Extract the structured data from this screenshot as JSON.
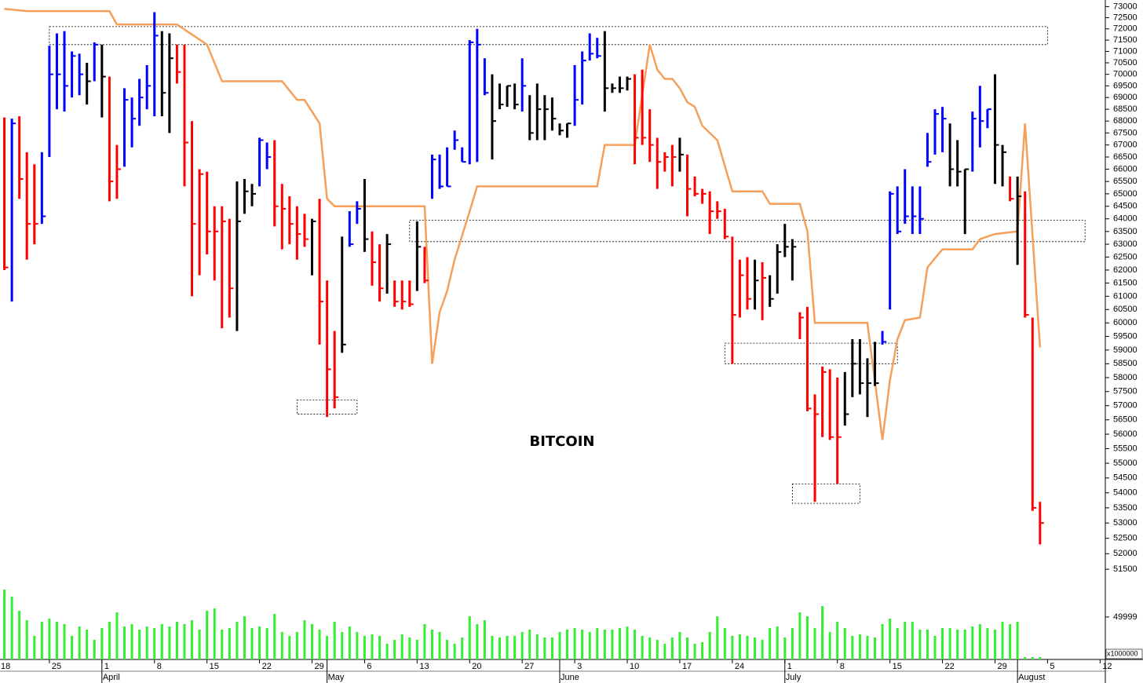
{
  "chart_data": {
    "type": "ohlc",
    "title": "BITCOIN",
    "log_scale": true,
    "grid": false,
    "ylim": [
      48700,
      73300
    ],
    "yticks": [
      73000,
      72500,
      72000,
      71500,
      71000,
      70500,
      70000,
      69500,
      69000,
      68500,
      68000,
      67500,
      67000,
      66500,
      66000,
      65500,
      65000,
      64500,
      64000,
      63500,
      63000,
      62500,
      62000,
      61500,
      61000,
      60500,
      60000,
      59500,
      59000,
      58500,
      58000,
      57500,
      57000,
      56500,
      56000,
      55500,
      55000,
      54500,
      54000,
      53500,
      53000,
      52500,
      52000,
      51500,
      49999
    ],
    "xlim": [
      0.42,
      147.7
    ],
    "xticks": [
      {
        "value": 0,
        "label": "18"
      },
      {
        "value": 7,
        "label": "25"
      },
      {
        "value": 14,
        "label": "1"
      },
      {
        "value": 21,
        "label": "8"
      },
      {
        "value": 28,
        "label": "15"
      },
      {
        "value": 35,
        "label": "22"
      },
      {
        "value": 42,
        "label": "29"
      },
      {
        "value": 49,
        "label": "6"
      },
      {
        "value": 56,
        "label": "13"
      },
      {
        "value": 63,
        "label": "20"
      },
      {
        "value": 70,
        "label": "27"
      },
      {
        "value": 77,
        "label": "3"
      },
      {
        "value": 84,
        "label": "10"
      },
      {
        "value": 91,
        "label": "17"
      },
      {
        "value": 98,
        "label": "24"
      },
      {
        "value": 105,
        "label": "1"
      },
      {
        "value": 112,
        "label": "8"
      },
      {
        "value": 119,
        "label": "15"
      },
      {
        "value": 126,
        "label": "22"
      },
      {
        "value": 133,
        "label": "29"
      },
      {
        "value": 140,
        "label": "5"
      },
      {
        "value": 147,
        "label": "12"
      }
    ],
    "month_ticks": [
      {
        "value": 14,
        "label": "April"
      },
      {
        "value": 44,
        "label": "May"
      },
      {
        "value": 75,
        "label": "June"
      },
      {
        "value": 105,
        "label": "July"
      },
      {
        "value": 136,
        "label": "August"
      }
    ],
    "x": [
      1,
      2,
      3,
      4,
      5,
      6,
      7,
      8,
      9,
      10,
      11,
      12,
      13,
      14,
      15,
      16,
      17,
      18,
      19,
      20,
      21,
      22,
      23,
      24,
      25,
      26,
      27,
      28,
      29,
      30,
      31,
      32,
      33,
      34,
      35,
      36,
      37,
      38,
      39,
      40,
      41,
      42,
      43,
      44,
      45,
      46,
      47,
      48,
      49,
      50,
      51,
      52,
      53,
      54,
      55,
      56,
      57,
      58,
      59,
      60,
      61,
      62,
      63,
      64,
      65,
      66,
      67,
      68,
      69,
      70,
      71,
      72,
      73,
      74,
      75,
      76,
      77,
      78,
      79,
      80,
      81,
      82,
      83,
      84,
      85,
      86,
      87,
      88,
      89,
      90,
      91,
      92,
      93,
      94,
      95,
      96,
      97,
      98,
      99,
      100,
      101,
      102,
      103,
      104,
      105,
      106,
      107,
      108,
      109,
      110,
      111,
      112,
      113,
      114,
      115,
      116,
      117,
      118,
      119,
      120,
      121,
      122,
      123,
      124,
      125,
      126,
      127,
      128,
      129,
      130,
      131,
      132,
      133,
      134,
      135,
      136,
      137,
      138,
      139
    ],
    "high": [
      68150,
      68100,
      68200,
      66700,
      66200,
      66700,
      71250,
      71800,
      71900,
      71000,
      70900,
      70500,
      71400,
      71300,
      69900,
      67000,
      69400,
      69000,
      69800,
      70400,
      72750,
      71900,
      71800,
      71300,
      71300,
      68000,
      66000,
      65900,
      64500,
      64500,
      64000,
      65500,
      65600,
      65400,
      67300,
      67100,
      67200,
      65400,
      64900,
      64500,
      64200,
      64000,
      64800,
      61600,
      59700,
      63300,
      64300,
      64700,
      65600,
      63500,
      63000,
      63400,
      61600,
      61600,
      61600,
      63900,
      62900,
      66600,
      66600,
      66900,
      67600,
      66900,
      71500,
      72000,
      70700,
      70000,
      69600,
      69500,
      69600,
      70700,
      69100,
      69600,
      69100,
      69000,
      67900,
      67900,
      70400,
      71000,
      71800,
      71600,
      71900,
      69600,
      69900,
      69900,
      70000,
      70200,
      68500,
      67300,
      66700,
      67000,
      67300,
      66600,
      65700,
      65200,
      65100,
      64700,
      64400,
      63300,
      62400,
      62500,
      62400,
      62300,
      61800,
      63000,
      63800,
      63200,
      60400,
      60600,
      57400,
      58400,
      58300,
      58000,
      58200,
      59400,
      59400,
      58700,
      59300,
      59700,
      65100,
      65300,
      66000,
      65300,
      65300,
      67500,
      68500,
      68600,
      67900,
      67200,
      66000,
      68400,
      69500,
      68500,
      70000,
      67000,
      65700,
      65700,
      65100,
      60200,
      53700
    ],
    "low": [
      62000,
      60800,
      64800,
      62400,
      63000,
      63800,
      66500,
      68500,
      68400,
      69000,
      69100,
      68700,
      69700,
      68150,
      64700,
      64800,
      66100,
      66900,
      67800,
      68500,
      68200,
      68200,
      67500,
      69600,
      65300,
      61000,
      61800,
      62600,
      61600,
      59800,
      60200,
      59700,
      64200,
      64500,
      65300,
      66000,
      63700,
      62800,
      63000,
      62400,
      62900,
      61800,
      59200,
      56600,
      56900,
      58900,
      62900,
      63800,
      62700,
      61400,
      60800,
      61100,
      60600,
      60500,
      60600,
      61200,
      61500,
      64800,
      65200,
      65300,
      66800,
      66300,
      66200,
      66300,
      69100,
      66400,
      68500,
      68600,
      68500,
      68400,
      67200,
      67200,
      67200,
      67600,
      67400,
      67300,
      67800,
      68700,
      70600,
      70700,
      68400,
      69200,
      69200,
      69300,
      66200,
      67000,
      66300,
      65200,
      65900,
      65300,
      65900,
      64100,
      64900,
      64600,
      63400,
      64000,
      63200,
      58500,
      60200,
      60500,
      60500,
      60100,
      60600,
      61100,
      62500,
      61600,
      59400,
      56800,
      53700,
      55900,
      55800,
      54300,
      56300,
      57300,
      57400,
      56600,
      57700,
      59200,
      60500,
      63400,
      63800,
      63400,
      63400,
      66100,
      66600,
      66700,
      65300,
      65300,
      63400,
      65900,
      66900,
      67700,
      65400,
      65300,
      64700,
      62200,
      60200,
      53400,
      52300
    ],
    "close": [
      62100,
      67900,
      65600,
      63800,
      63800,
      64100,
      70000,
      70000,
      69500,
      70800,
      70000,
      69700,
      71300,
      69900,
      65500,
      66000,
      68900,
      68100,
      69000,
      69500,
      71700,
      69200,
      70700,
      70100,
      67100,
      63800,
      65800,
      63500,
      63500,
      63900,
      61300,
      63900,
      65100,
      65000,
      67200,
      66500,
      64500,
      64400,
      63800,
      63400,
      63200,
      63900,
      60800,
      58300,
      57300,
      59200,
      63000,
      64400,
      63200,
      62300,
      61300,
      63000,
      60800,
      60800,
      60700,
      62900,
      61600,
      66400,
      65300,
      65300,
      67200,
      66300,
      71400,
      71300,
      69200,
      68000,
      68700,
      69500,
      68700,
      69500,
      67500,
      68500,
      68500,
      68100,
      67600,
      67900,
      68900,
      70600,
      70900,
      70800,
      69400,
      69400,
      69400,
      69800,
      67300,
      67300,
      67000,
      66300,
      66500,
      66500,
      66600,
      65200,
      65000,
      65000,
      64300,
      64300,
      63300,
      60300,
      61800,
      60900,
      61600,
      61700,
      60900,
      62700,
      62900,
      62900,
      60200,
      56900,
      56700,
      58200,
      55900,
      55900,
      56700,
      58500,
      57800,
      57800,
      57800,
      59300,
      65000,
      63500,
      64100,
      64100,
      64000,
      66300,
      68300,
      68100,
      66000,
      65900,
      66000,
      68100,
      68000,
      68500,
      67000,
      66700,
      64800,
      64900,
      60300,
      53500,
      53000
    ],
    "colors": [
      "red",
      "blue",
      "red",
      "red",
      "red",
      "blue",
      "blue",
      "blue",
      "blue",
      "blue",
      "blue",
      "black",
      "blue",
      "black",
      "red",
      "red",
      "blue",
      "blue",
      "blue",
      "blue",
      "blue",
      "black",
      "black",
      "red",
      "red",
      "red",
      "red",
      "red",
      "red",
      "red",
      "red",
      "black",
      "black",
      "black",
      "blue",
      "blue",
      "red",
      "red",
      "red",
      "red",
      "red",
      "black",
      "red",
      "red",
      "red",
      "black",
      "blue",
      "blue",
      "black",
      "red",
      "red",
      "black",
      "red",
      "red",
      "red",
      "black",
      "red",
      "blue",
      "blue",
      "blue",
      "blue",
      "blue",
      "blue",
      "blue",
      "blue",
      "black",
      "black",
      "black",
      "black",
      "blue",
      "black",
      "black",
      "black",
      "black",
      "black",
      "black",
      "blue",
      "blue",
      "blue",
      "blue",
      "black",
      "black",
      "black",
      "black",
      "red",
      "red",
      "red",
      "red",
      "red",
      "red",
      "black",
      "red",
      "red",
      "red",
      "red",
      "red",
      "red",
      "red",
      "red",
      "red",
      "black",
      "red",
      "black",
      "black",
      "black",
      "black",
      "red",
      "red",
      "red",
      "red",
      "red",
      "red",
      "black",
      "black",
      "black",
      "black",
      "black",
      "blue",
      "blue",
      "blue",
      "blue",
      "blue",
      "blue",
      "blue",
      "blue",
      "blue",
      "black",
      "black",
      "black",
      "blue",
      "blue",
      "blue",
      "black",
      "black",
      "red",
      "black",
      "red",
      "red",
      "red"
    ],
    "line": {
      "color": "#f5a05a",
      "x": [
        1,
        4,
        15,
        16,
        24,
        28,
        30,
        38,
        40,
        41,
        43,
        44,
        45,
        57,
        58,
        59,
        60,
        61,
        63,
        64,
        80,
        81,
        85,
        87,
        88,
        89,
        90,
        91,
        92,
        93,
        94,
        96,
        98,
        102,
        103,
        107,
        108,
        109,
        116,
        118,
        119,
        120,
        121,
        123,
        124,
        126,
        130,
        131,
        133,
        136,
        137,
        139
      ],
      "values": [
        72900,
        72800,
        72800,
        72200,
        72200,
        71300,
        69700,
        69700,
        68900,
        68900,
        67900,
        64800,
        64500,
        64500,
        58500,
        60400,
        61200,
        62400,
        64300,
        65300,
        65300,
        67000,
        67000,
        71300,
        70200,
        69800,
        69800,
        69400,
        68800,
        68600,
        67800,
        67200,
        65100,
        65100,
        64600,
        64600,
        63500,
        60000,
        60000,
        55800,
        57900,
        59400,
        60100,
        60200,
        62100,
        62800,
        62800,
        63200,
        63400,
        63500,
        67900,
        59100
      ]
    },
    "volume": {
      "color": "#33ee33",
      "unit_label": "x1000000",
      "vlim": [
        0,
        100
      ],
      "values": [
        89,
        80,
        62,
        50,
        30,
        48,
        52,
        48,
        45,
        30,
        42,
        38,
        25,
        40,
        48,
        60,
        42,
        45,
        38,
        42,
        40,
        45,
        42,
        48,
        45,
        50,
        38,
        62,
        65,
        38,
        40,
        48,
        55,
        40,
        42,
        40,
        58,
        35,
        30,
        35,
        50,
        45,
        38,
        30,
        48,
        35,
        42,
        35,
        30,
        32,
        30,
        20,
        25,
        32,
        28,
        25,
        45,
        38,
        35,
        25,
        20,
        28,
        55,
        45,
        50,
        30,
        28,
        30,
        30,
        35,
        38,
        32,
        28,
        28,
        35,
        38,
        40,
        38,
        35,
        40,
        38,
        38,
        40,
        42,
        38,
        30,
        28,
        25,
        20,
        28,
        35,
        28,
        20,
        22,
        35,
        55,
        40,
        30,
        32,
        30,
        28,
        25,
        40,
        42,
        28,
        40,
        60,
        55,
        40,
        68,
        35,
        48,
        40,
        30,
        32,
        30,
        28,
        45,
        52,
        40,
        48,
        48,
        38,
        38,
        30,
        40,
        40,
        38,
        38,
        42,
        45,
        40,
        38,
        48,
        45,
        48,
        3,
        3,
        3
      ]
    },
    "zones": [
      {
        "x": [
          7,
          140
        ],
        "y": [
          71300,
          72100
        ]
      },
      {
        "x": [
          40,
          48
        ],
        "y": [
          56700,
          57200
        ]
      },
      {
        "x": [
          55,
          145
        ],
        "y": [
          63100,
          63950
        ]
      },
      {
        "x": [
          97,
          120
        ],
        "y": [
          58500,
          59250
        ]
      },
      {
        "x": [
          106,
          115
        ],
        "y": [
          53650,
          54300
        ]
      }
    ]
  }
}
